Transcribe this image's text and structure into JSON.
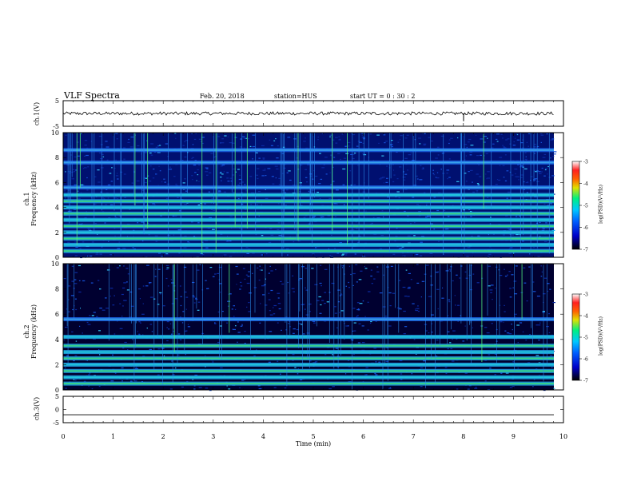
{
  "header": {
    "title": "VLF Spectra",
    "date": "Feb. 20, 2018",
    "station": "station=HUS",
    "start_ut": "start  UT =   0 : 30 : 2"
  },
  "colors": {
    "background_dark": "#00003c",
    "noise_blue": "#0a3cc8",
    "band_cyan": "#20c8e8",
    "band_green": "#40e860"
  },
  "chart_data": [
    {
      "type": "line",
      "name": "ch1-waveform",
      "ylabel": "ch.1(V)",
      "ylim": [
        -5,
        5
      ],
      "yticks": [
        "5",
        "-5"
      ],
      "description_values": {
        "baseline": 0,
        "noise_amplitude": 0.4
      }
    },
    {
      "type": "heatmap",
      "name": "ch1-spectrogram",
      "ylabel_line1": "ch.1",
      "ylabel_line2": "Frequency  (kHz)",
      "ylim": [
        0,
        10
      ],
      "yticks": [
        "0",
        "2",
        "4",
        "6",
        "8",
        "10"
      ],
      "bands_khz": [
        0.5,
        1.0,
        1.5,
        2.0,
        2.5,
        3.0,
        3.5,
        4.0,
        4.5,
        5.0,
        5.6,
        7.6,
        8.6
      ],
      "colorbar": {
        "ticks": [
          "-3",
          "-4",
          "-5",
          "-6",
          "-7"
        ],
        "range": [
          -7,
          -3
        ],
        "label": "log(PSD)(V²/Hz)"
      }
    },
    {
      "type": "heatmap",
      "name": "ch2-spectrogram",
      "ylabel_line1": "ch.2",
      "ylabel_line2": "Frequency  (kHz)",
      "ylim": [
        0,
        10
      ],
      "yticks": [
        "0",
        "2",
        "4",
        "6",
        "8",
        "10"
      ],
      "bands_khz": [
        0.5,
        1.0,
        1.5,
        2.0,
        2.5,
        3.0,
        3.5,
        4.2,
        5.6
      ],
      "colorbar": {
        "ticks": [
          "-3",
          "-4",
          "-5",
          "-6",
          "-7"
        ],
        "range": [
          -7,
          -3
        ],
        "label": "log(PSD)(V²/Hz)"
      }
    },
    {
      "type": "line",
      "name": "ch3-waveform",
      "ylabel": "ch.3(V)",
      "ylim": [
        -5,
        5
      ],
      "yticks": [
        "5",
        "0",
        "-5"
      ],
      "description_values": {
        "baseline": -2
      }
    }
  ],
  "xaxis": {
    "xlabel": "Time  (min)",
    "xlim": [
      0,
      10
    ],
    "ticks": [
      "0",
      "1",
      "2",
      "3",
      "4",
      "5",
      "6",
      "7",
      "8",
      "9",
      "10"
    ]
  }
}
